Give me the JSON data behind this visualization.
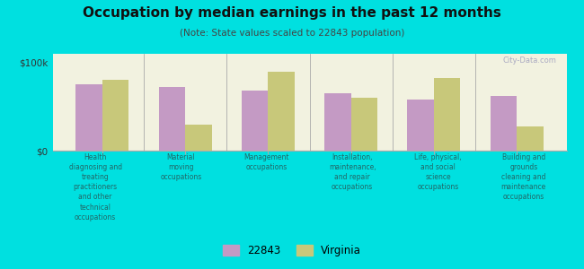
{
  "title": "Occupation by median earnings in the past 12 months",
  "subtitle": "(Note: State values scaled to 22843 population)",
  "categories": [
    "Health\ndiagnosing and\ntreating\npractitioners\nand other\ntechnical\noccupations",
    "Material\nmoving\noccupations",
    "Management\noccupations",
    "Installation,\nmaintenance,\nand repair\noccupations",
    "Life, physical,\nand social\nscience\noccupations",
    "Building and\ngrounds\ncleaning and\nmaintenance\noccupations"
  ],
  "values_22843": [
    75000,
    72000,
    68000,
    65000,
    58000,
    62000
  ],
  "values_virginia": [
    80000,
    30000,
    90000,
    60000,
    82000,
    28000
  ],
  "color_22843": "#c49ac4",
  "color_virginia": "#c8c87a",
  "ylim": [
    0,
    110000
  ],
  "yticks": [
    0,
    100000
  ],
  "ytick_labels": [
    "$0",
    "$100k"
  ],
  "background_color": "#00e0e0",
  "plot_bg_color": "#f2f2e0",
  "watermark": "City-Data.com",
  "legend_label_1": "22843",
  "legend_label_2": "Virginia",
  "bar_width": 0.32
}
